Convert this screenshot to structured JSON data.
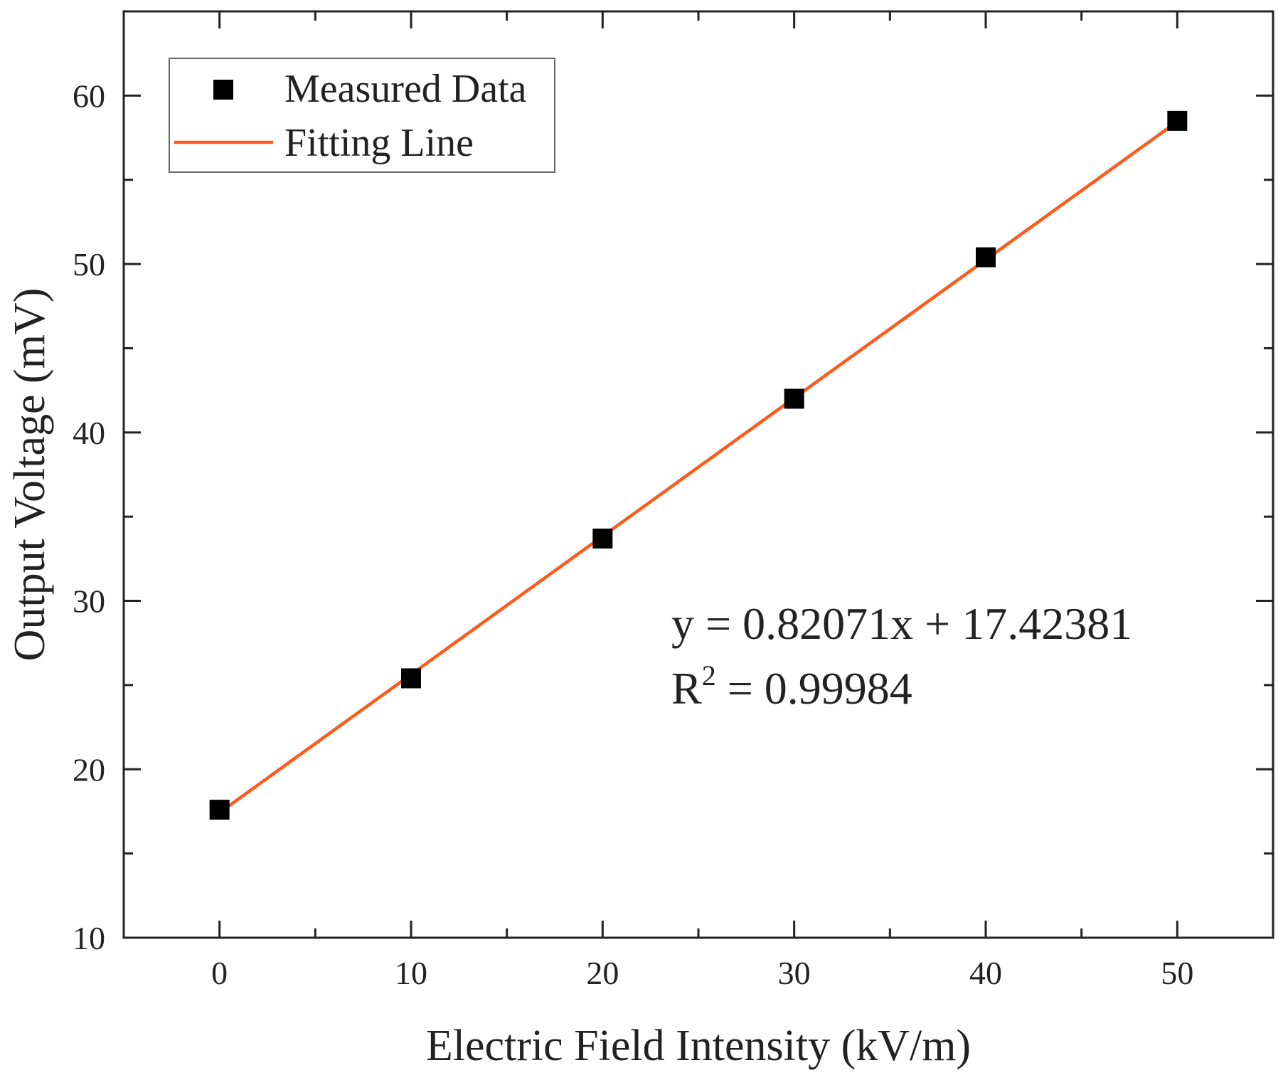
{
  "chart_data": {
    "type": "scatter",
    "title": "",
    "xlabel": "Electric Field Intensity (kV/m)",
    "ylabel": "Output Voltage (mV)",
    "xlim": [
      -5,
      55
    ],
    "ylim": [
      10,
      65
    ],
    "x_major_ticks": [
      0,
      10,
      20,
      30,
      40,
      50
    ],
    "x_minor_ticks": [
      5,
      15,
      25,
      35,
      45
    ],
    "y_major_ticks": [
      10,
      20,
      30,
      40,
      50,
      60
    ],
    "y_minor_ticks": [
      15,
      25,
      35,
      45,
      55
    ],
    "x_tick_labels": [
      "0",
      "10",
      "20",
      "30",
      "40",
      "50"
    ],
    "y_tick_labels": [
      "10",
      "20",
      "30",
      "40",
      "50",
      "60"
    ],
    "series": [
      {
        "name": "Measured Data",
        "kind": "scatter",
        "x": [
          0,
          10,
          20,
          30,
          40,
          50
        ],
        "y": [
          17.6,
          25.4,
          33.7,
          42.0,
          50.4,
          58.5
        ],
        "color": "#000000"
      },
      {
        "name": "Fitting Line",
        "kind": "line",
        "x": [
          0,
          50
        ],
        "y": [
          17.42381,
          58.45931
        ],
        "slope": 0.82071,
        "intercept": 17.42381,
        "color": "#ff5a1a"
      }
    ],
    "legend": {
      "placement": "top-left",
      "entries": [
        "Measured Data",
        "Fitting Line"
      ]
    },
    "annotations": {
      "equation": "y = 0.82071x + 17.42381",
      "r2_prefix": "R",
      "r2_exponent": "2",
      "r2_suffix": " = 0.99984"
    }
  }
}
